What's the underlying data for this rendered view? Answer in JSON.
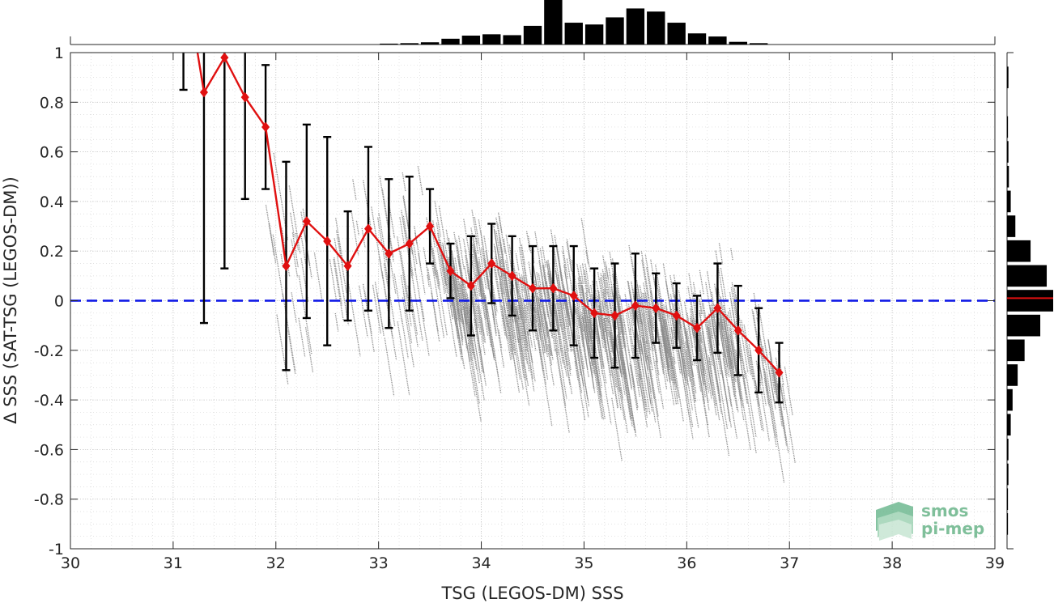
{
  "chart_data": {
    "type": "scatter",
    "title": "",
    "xlabel": "TSG (LEGOS-DM) SSS",
    "ylabel": "Δ SSS (SAT-TSG (LEGOS-DM))",
    "xlim": [
      30,
      39
    ],
    "ylim": [
      -1,
      1
    ],
    "xticks": [
      30,
      31,
      32,
      33,
      34,
      35,
      36,
      37,
      38,
      39
    ],
    "yticks": [
      -1,
      -0.8,
      -0.6,
      -0.4,
      -0.2,
      0,
      0.2,
      0.4,
      0.6,
      0.8,
      1
    ],
    "xtick_labels": [
      "30",
      "31",
      "32",
      "33",
      "34",
      "35",
      "36",
      "37",
      "38",
      "39"
    ],
    "ytick_labels": [
      "-1",
      "-0.8",
      "-0.6",
      "-0.4",
      "-0.2",
      "0",
      "0.2",
      "0.4",
      "0.6",
      "0.8",
      "1"
    ],
    "grid": true,
    "reference_line": {
      "y": 0,
      "style": "dashed",
      "color": "#0a14e6"
    },
    "colors": {
      "scatter": "#8c8c8c",
      "binned_mean": "#e01010",
      "error_bars": "#000000",
      "histogram": "#000000",
      "histogram_mean_line": "#e01010"
    },
    "binned": {
      "x": [
        31.1,
        31.3,
        31.5,
        31.7,
        31.9,
        32.1,
        32.3,
        32.5,
        32.7,
        32.9,
        33.1,
        33.3,
        33.5,
        33.7,
        33.9,
        34.1,
        34.3,
        34.5,
        34.7,
        34.9,
        35.1,
        35.3,
        35.5,
        35.7,
        35.9,
        36.1,
        36.3,
        36.5,
        36.7,
        36.9
      ],
      "mean": [
        1.35,
        0.84,
        0.98,
        0.82,
        0.7,
        0.14,
        0.32,
        0.24,
        0.14,
        0.29,
        0.19,
        0.23,
        0.3,
        0.12,
        0.06,
        0.15,
        0.1,
        0.05,
        0.05,
        0.02,
        -0.05,
        -0.06,
        -0.02,
        -0.03,
        -0.06,
        -0.11,
        -0.03,
        -0.12,
        -0.2,
        -0.29
      ],
      "std": [
        0.5,
        0.93,
        0.85,
        0.41,
        0.25,
        0.42,
        0.39,
        0.42,
        0.22,
        0.33,
        0.3,
        0.27,
        0.15,
        0.11,
        0.2,
        0.16,
        0.16,
        0.17,
        0.17,
        0.2,
        0.18,
        0.21,
        0.21,
        0.14,
        0.13,
        0.13,
        0.18,
        0.18,
        0.17,
        0.12
      ]
    },
    "x_histogram": {
      "bin_centers": [
        33.1,
        33.3,
        33.5,
        33.7,
        33.9,
        34.1,
        34.3,
        34.5,
        34.7,
        34.9,
        35.1,
        35.3,
        35.5,
        35.7,
        35.9,
        36.1,
        36.3,
        36.5,
        36.7
      ],
      "relative_counts": [
        0.02,
        0.03,
        0.05,
        0.13,
        0.2,
        0.23,
        0.21,
        0.42,
        1.0,
        0.49,
        0.45,
        0.61,
        0.81,
        0.74,
        0.49,
        0.25,
        0.18,
        0.06,
        0.03
      ]
    },
    "y_histogram": {
      "bin_centers": [
        0.9,
        0.7,
        0.6,
        0.5,
        0.4,
        0.3,
        0.2,
        0.1,
        0.0,
        -0.1,
        -0.2,
        -0.3,
        -0.4,
        -0.5,
        -0.6,
        -0.7,
        -0.8,
        -0.9
      ],
      "relative_counts": [
        0.03,
        0.02,
        0.03,
        0.04,
        0.08,
        0.18,
        0.51,
        0.86,
        1.0,
        0.72,
        0.38,
        0.23,
        0.12,
        0.08,
        0.03,
        0.03,
        0.02,
        0.02
      ],
      "mean_line": 0.01
    },
    "logo": [
      "smos",
      "pi-mep"
    ]
  }
}
